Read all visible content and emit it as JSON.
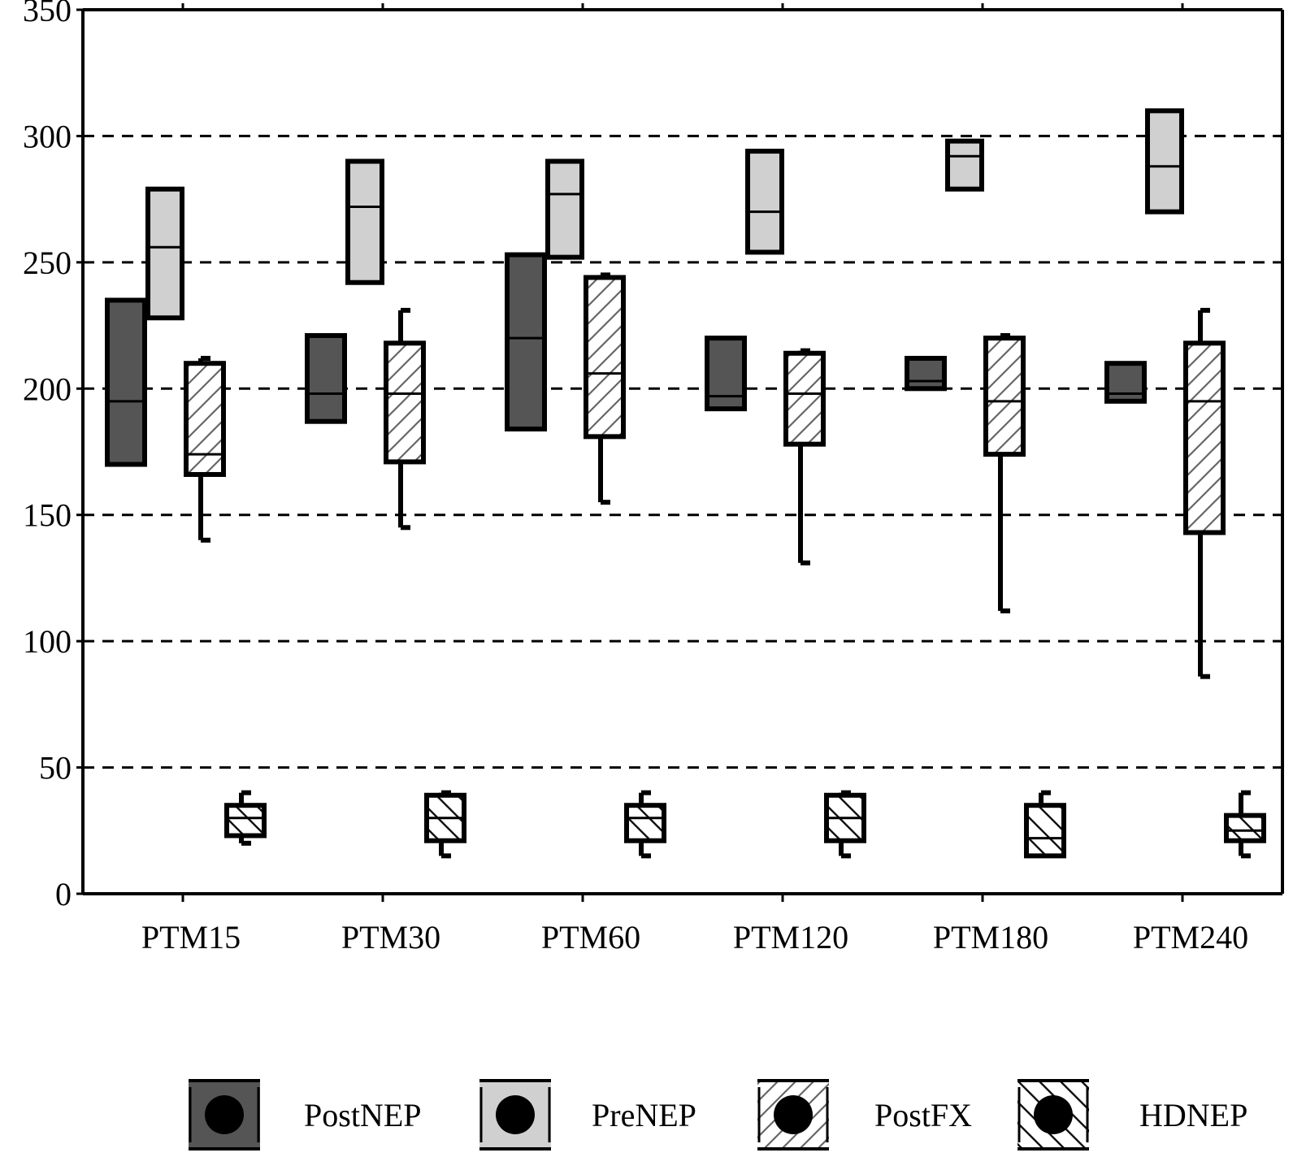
{
  "chart_data": {
    "type": "boxplot",
    "title": "",
    "xlabel": "",
    "ylabel": "",
    "ylim": [
      0,
      350
    ],
    "yticks": [
      0,
      50,
      100,
      150,
      200,
      250,
      300,
      350
    ],
    "ytick_labels": [
      "0",
      "50",
      "100",
      "150",
      "200",
      "250",
      "300",
      "350"
    ],
    "grid": "horizontal dashed",
    "legend_position": "bottom",
    "categories": [
      "PTM15",
      "PTM30",
      "PTM60",
      "PTM120",
      "PTM180",
      "PTM240"
    ],
    "series": [
      {
        "name": "PostNEP",
        "color": "#555555",
        "pattern": "solid-dark",
        "boxes": [
          {
            "q1": 170,
            "median": 195,
            "q3": 235,
            "min": null,
            "max": null
          },
          {
            "q1": 187,
            "median": 198,
            "q3": 221,
            "min": null,
            "max": null
          },
          {
            "q1": 184,
            "median": 220,
            "q3": 253,
            "min": null,
            "max": null
          },
          {
            "q1": 192,
            "median": 197,
            "q3": 220,
            "min": null,
            "max": null
          },
          {
            "q1": 200,
            "median": 203,
            "q3": 212,
            "min": null,
            "max": null
          },
          {
            "q1": 195,
            "median": 198,
            "q3": 210,
            "min": null,
            "max": null
          }
        ]
      },
      {
        "name": "PreNEP",
        "color": "#d0d0d0",
        "pattern": "solid-light",
        "boxes": [
          {
            "q1": 228,
            "median": 256,
            "q3": 279,
            "min": null,
            "max": null
          },
          {
            "q1": 242,
            "median": 272,
            "q3": 290,
            "min": null,
            "max": null
          },
          {
            "q1": 252,
            "median": 277,
            "q3": 290,
            "min": null,
            "max": null
          },
          {
            "q1": 254,
            "median": 270,
            "q3": 294,
            "min": null,
            "max": null
          },
          {
            "q1": 279,
            "median": 292,
            "q3": 298,
            "min": null,
            "max": null
          },
          {
            "q1": 270,
            "median": 288,
            "q3": 310,
            "min": null,
            "max": null
          }
        ]
      },
      {
        "name": "PostFX",
        "color": "#ffffff",
        "pattern": "forward-hatch",
        "boxes": [
          {
            "q1": 166,
            "median": 174,
            "q3": 210,
            "min": 140,
            "max": 212
          },
          {
            "q1": 171,
            "median": 198,
            "q3": 218,
            "min": 145,
            "max": 231
          },
          {
            "q1": 181,
            "median": 206,
            "q3": 244,
            "min": 155,
            "max": 245
          },
          {
            "q1": 178,
            "median": 198,
            "q3": 214,
            "min": 131,
            "max": 215
          },
          {
            "q1": 174,
            "median": 195,
            "q3": 220,
            "min": 112,
            "max": 221
          },
          {
            "q1": 143,
            "median": 195,
            "q3": 218,
            "min": 86,
            "max": 231
          }
        ]
      },
      {
        "name": "HDNEP",
        "color": "#ffffff",
        "pattern": "back-hatch",
        "boxes": [
          {
            "q1": 23,
            "median": 30,
            "q3": 35,
            "min": 20,
            "max": 40
          },
          {
            "q1": 21,
            "median": 30,
            "q3": 39,
            "min": 15,
            "max": 40
          },
          {
            "q1": 21,
            "median": 30,
            "q3": 35,
            "min": 15,
            "max": 40
          },
          {
            "q1": 21,
            "median": 30,
            "q3": 39,
            "min": 15,
            "max": 40
          },
          {
            "q1": 15,
            "median": 22,
            "q3": 35,
            "min": 15,
            "max": 40
          },
          {
            "q1": 21,
            "median": 25,
            "q3": 31,
            "min": 15,
            "max": 40
          }
        ]
      }
    ]
  }
}
